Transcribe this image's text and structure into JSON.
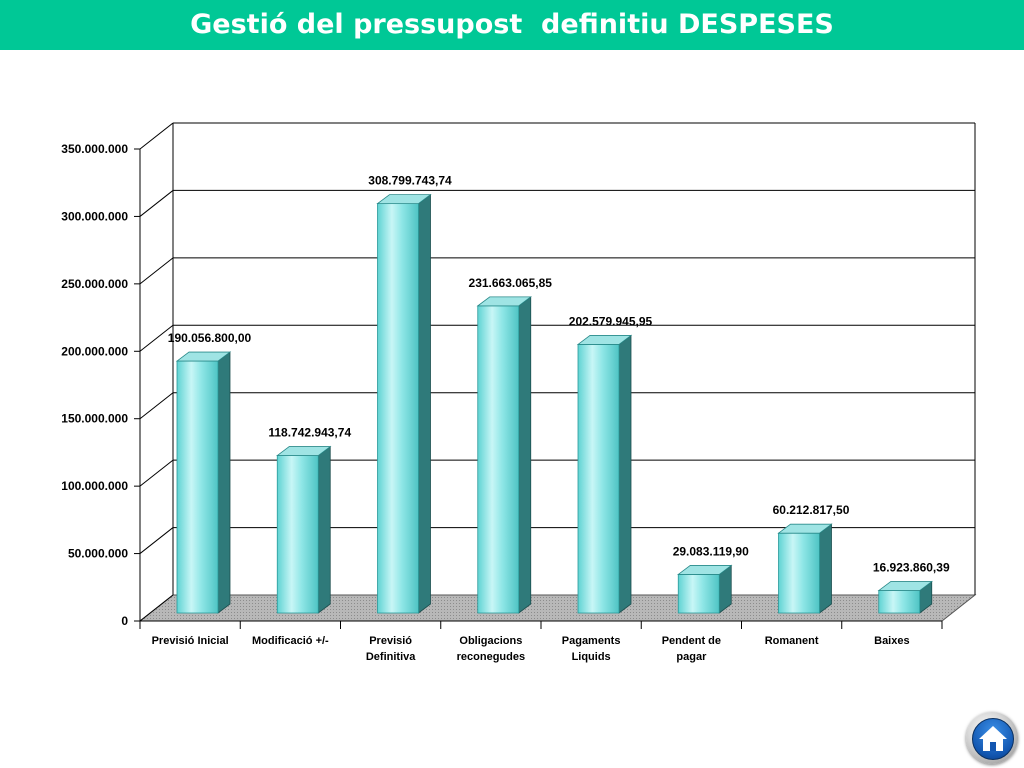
{
  "header": {
    "title": "Gestió del pressupost  definitiu DESPESES"
  },
  "chart_data": {
    "type": "bar",
    "categories": [
      [
        "Previsió Inicial"
      ],
      [
        "Modificació +/-"
      ],
      [
        "Previsió",
        "Definitiva"
      ],
      [
        "Obligacions",
        "reconegudes"
      ],
      [
        "Pagaments",
        "Liquids"
      ],
      [
        "Pendent de",
        "pagar"
      ],
      [
        "Romanent"
      ],
      [
        "Baixes"
      ]
    ],
    "values": [
      190056800.0,
      118742943.74,
      308799743.74,
      231663065.85,
      202579945.95,
      29083119.9,
      60212817.5,
      16923860.39
    ],
    "value_labels": [
      "190.056.800,00",
      "118.742.943,74",
      "308.799.743,74",
      "231.663.065,85",
      "202.579.945,95",
      "29.083.119,90",
      "60.212.817,50",
      "16.923.860,39"
    ],
    "y_ticks": [
      0,
      50000000,
      100000000,
      150000000,
      200000000,
      250000000,
      300000000,
      350000000
    ],
    "y_tick_labels": [
      "0",
      "50.000.000",
      "100.000.000",
      "150.000.000",
      "200.000.000",
      "250.000.000",
      "300.000.000",
      "350.000.000"
    ],
    "ylim": [
      0,
      350000000
    ],
    "grid": true,
    "legend": false,
    "style": "3d",
    "colors": {
      "bar": "#7fe0e0",
      "header": "#00c896"
    }
  },
  "nav": {
    "home_icon": "home-icon"
  }
}
